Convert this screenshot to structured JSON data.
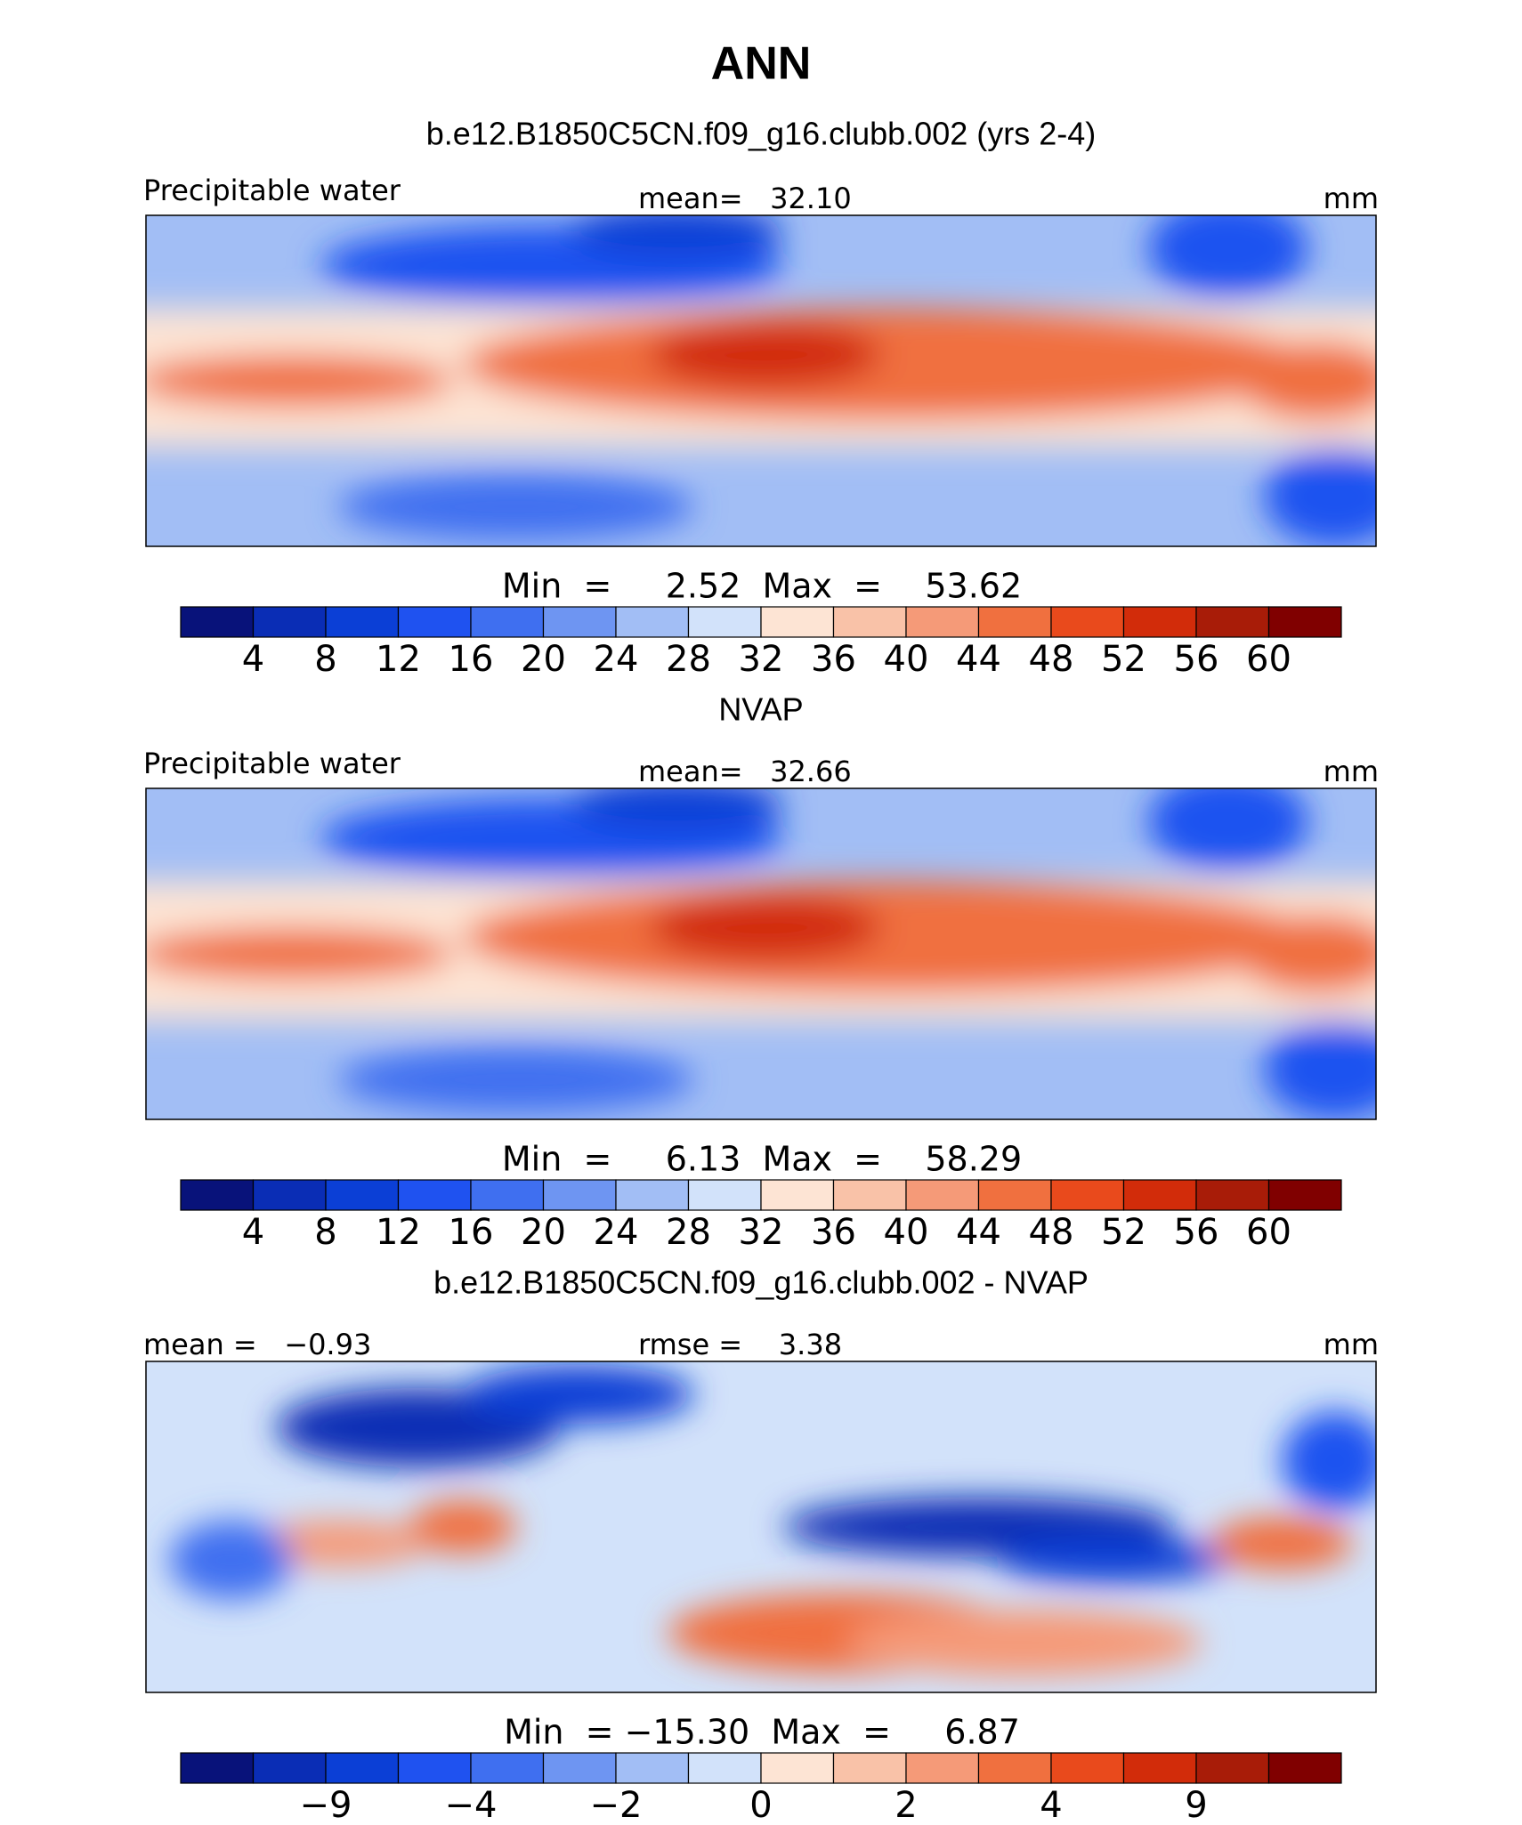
{
  "title": "ANN",
  "colorbar_colors": [
    "#08127a",
    "#0a2db5",
    "#0b3fd6",
    "#1f52f0",
    "#3f6ff0",
    "#6e95f2",
    "#a2bef5",
    "#d2e2fa",
    "#fde4d4",
    "#f9c2a8",
    "#f59a78",
    "#f0703f",
    "#e94a1c",
    "#d22c0a",
    "#a81c08",
    "#800000"
  ],
  "panels": [
    {
      "title": "b.e12.B1850C5CN.f09_g16.clubb.002 (yrs 2-4)",
      "left_label": "Precipitable water",
      "center_label": "mean=   32.10",
      "right_label": "mm",
      "minmax": "Min  =     2.52  Max  =    53.62",
      "colorbar_ticks": [
        "4",
        "8",
        "12",
        "16",
        "20",
        "24",
        "28",
        "32",
        "36",
        "40",
        "44",
        "48",
        "52",
        "56",
        "60"
      ]
    },
    {
      "title": "NVAP",
      "left_label": "Precipitable water",
      "center_label": "mean=   32.66",
      "right_label": "mm",
      "minmax": "Min  =     6.13  Max  =    58.29",
      "colorbar_ticks": [
        "4",
        "8",
        "12",
        "16",
        "20",
        "24",
        "28",
        "32",
        "36",
        "40",
        "44",
        "48",
        "52",
        "56",
        "60"
      ]
    },
    {
      "title": "b.e12.B1850C5CN.f09_g16.clubb.002 - NVAP",
      "left_label": "mean =   −0.93",
      "center_label": "rmse =    3.38",
      "right_label": "mm",
      "minmax": "Min  = −15.30  Max  =     6.87",
      "colorbar_ticks": [
        "−9",
        "−4",
        "−2",
        "0",
        "2",
        "4",
        "9"
      ]
    }
  ]
}
